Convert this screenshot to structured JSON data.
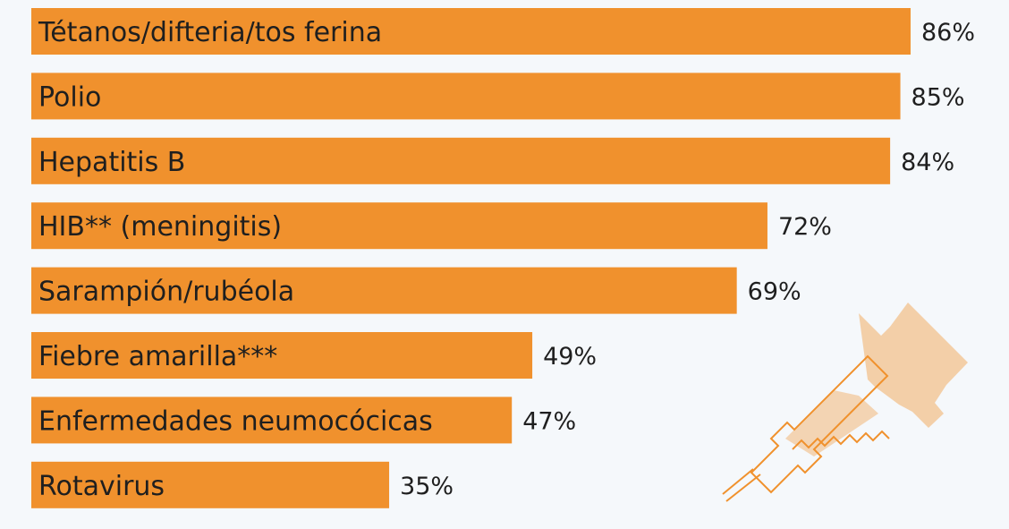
{
  "chart_data": {
    "type": "bar",
    "orientation": "horizontal",
    "categories": [
      "Tétanos/difteria/tos ferina",
      "Polio",
      "Hepatitis B",
      "HIB** (meningitis)",
      "Sarampión/rubéola",
      "Fiebre amarilla***",
      "Enfermedades neumocócicas",
      "Rotavirus"
    ],
    "values": [
      86,
      85,
      84,
      72,
      69,
      49,
      47,
      35
    ],
    "value_labels": [
      "86%",
      "85%",
      "84%",
      "72%",
      "69%",
      "49%",
      "47%",
      "35%"
    ],
    "title": "",
    "xlabel": "",
    "ylabel": "",
    "xlim": [
      0,
      100
    ],
    "grid": false,
    "legend": "none",
    "colors": {
      "bar": "#f0912d",
      "background": "#f5f8fb",
      "illustration": "#f0912d"
    }
  },
  "decoration": {
    "icon": "syringe-icon"
  }
}
